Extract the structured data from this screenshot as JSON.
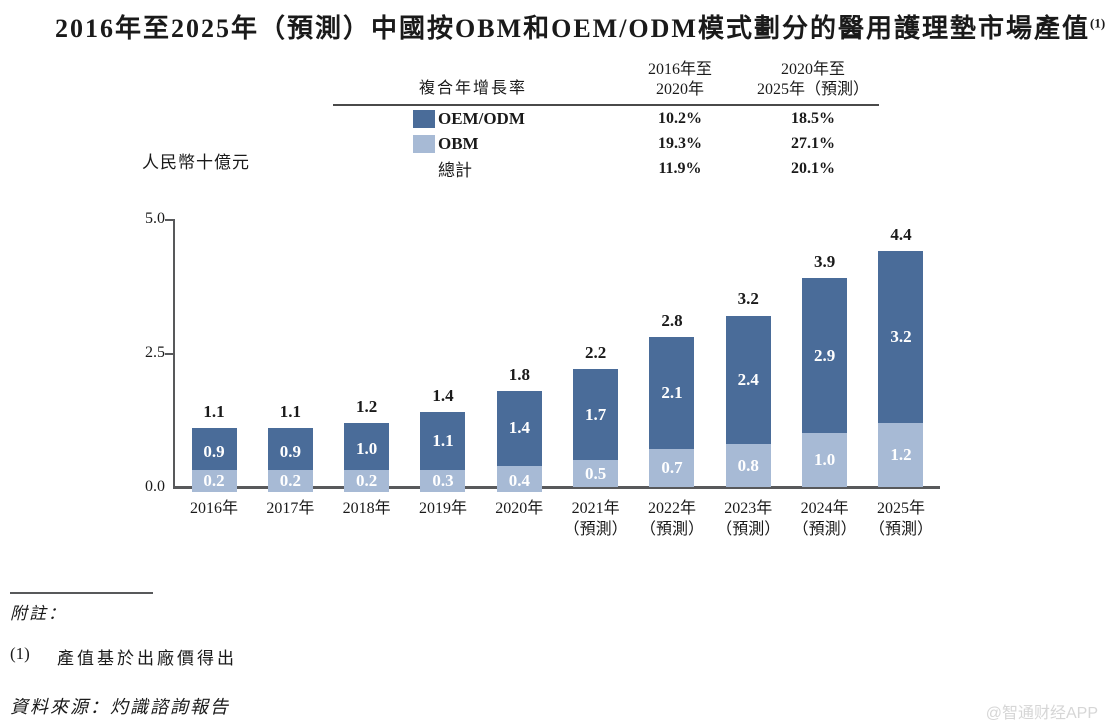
{
  "title": {
    "text": "2016年至2025年（預測）中國按OBM和OEM/ODM模式劃分的醫用護理墊市場產值",
    "superscript": "(1)"
  },
  "cagr_table": {
    "header_label": "複合年增長率",
    "columns": [
      {
        "line1": "2016年至",
        "line2": "2020年"
      },
      {
        "line1": "2020年至",
        "line2": "2025年（預測）"
      }
    ],
    "rows": [
      {
        "label": "OEM/ODM",
        "cagr_2016_2020": "10.2%",
        "cagr_2020_2025": "18.5%"
      },
      {
        "label": "OBM",
        "cagr_2016_2020": "19.3%",
        "cagr_2020_2025": "27.1%"
      },
      {
        "label": "總計",
        "cagr_2016_2020": "11.9%",
        "cagr_2020_2025": "20.1%"
      }
    ]
  },
  "chart_data": {
    "type": "bar",
    "stacked": true,
    "title": "2016年至2025年（預測）中國按OBM和OEM/ODM模式劃分的醫用護理墊市場產值(1)",
    "ylabel": "人民幣十億元",
    "ylim": [
      0,
      5
    ],
    "yticks": [
      0.0,
      2.5,
      5.0
    ],
    "grid": false,
    "legend_position": "top-table",
    "categories": [
      "2016年",
      "2017年",
      "2018年",
      "2019年",
      "2020年",
      "2021年（預測）",
      "2022年（預測）",
      "2023年（預測）",
      "2024年（預測）",
      "2025年（預測）"
    ],
    "series": [
      {
        "name": "OEM/ODM",
        "color": "#4a6c99",
        "values": [
          0.9,
          0.9,
          1.0,
          1.1,
          1.4,
          1.7,
          2.1,
          2.4,
          2.9,
          3.2
        ]
      },
      {
        "name": "OBM",
        "color": "#a7bad5",
        "values": [
          0.2,
          0.2,
          0.2,
          0.3,
          0.4,
          0.5,
          0.7,
          0.8,
          1.0,
          1.2
        ]
      }
    ],
    "totals": [
      1.1,
      1.1,
      1.2,
      1.4,
      1.8,
      2.2,
      2.8,
      3.2,
      3.9,
      4.4
    ]
  },
  "footnotes": {
    "header": "附註：",
    "items": [
      {
        "marker": "(1)",
        "text": "產值基於出廠價得出"
      }
    ],
    "source": "資料來源：灼識諮詢報告"
  },
  "watermark": "@智通财经APP",
  "colors": {
    "oem_odm": "#4a6c99",
    "obm": "#a7bad5",
    "axis": "#58595b",
    "text": "#1a1a1a",
    "watermark": "#d6d6d6"
  }
}
